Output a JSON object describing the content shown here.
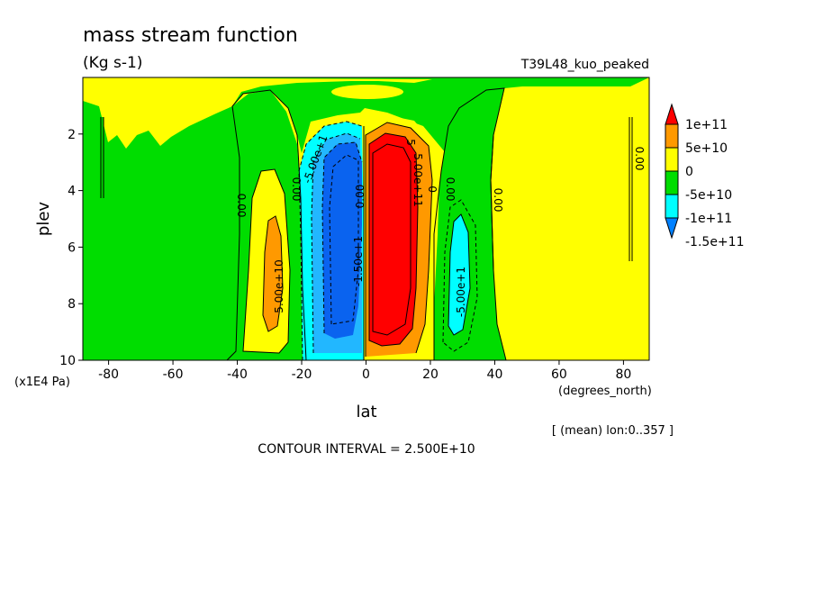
{
  "chart_data": {
    "type": "heatmap",
    "title": "mass stream function",
    "subtitle": "(Kg s-1)",
    "run_label": "T39L48_kuo_peaked",
    "xlabel": "lat",
    "x_units": "(degrees_north)",
    "ylabel": "plev",
    "y_units": "(x1E4 Pa)",
    "xlim": [
      -88,
      88
    ],
    "ylim": [
      10,
      0
    ],
    "x_ticks": [
      -80,
      -60,
      -40,
      -20,
      0,
      20,
      40,
      60,
      80
    ],
    "y_ticks": [
      2,
      4,
      6,
      8,
      10
    ],
    "mean_note": "[ (mean) lon:0..357 ]",
    "contour_interval_text": "CONTOUR INTERVAL = 2.500E+10",
    "colorbar": {
      "levels": [
        -150000000000.0,
        -100000000000.0,
        -50000000000.0,
        0,
        50000000000.0,
        100000000000.0
      ],
      "labels": [
        "1e+11",
        "5e+10",
        "0",
        "-5e+10",
        "-1e+11",
        "-1.5e+11"
      ],
      "colors": {
        "above_1e11": "#ff0000",
        "5e10_to_1e11": "#ff9900",
        "0_to_5e10": "#ffff00",
        "-5e10_to_0": "#00dd00",
        "-1e11_to_-5e10": "#00ffff",
        "below_-1e11": "#0080ff"
      }
    },
    "annotations": {
      "zero_left": "0.00",
      "zero_mid_left": "0.00",
      "zero_mid_right": "0.00",
      "zero_right": "0.00",
      "zero_far_right": "0.00",
      "pos_left_cell": "5.00e+10",
      "neg_right_cell": "-5.00e+1",
      "neg_inner": "-5.00e+1",
      "neg_core": "-1.50e+1",
      "pos_core": "5.00e+11",
      "pos_core_b": "5",
      "zero_core": "0.00",
      "zero_core_b": "0"
    }
  }
}
